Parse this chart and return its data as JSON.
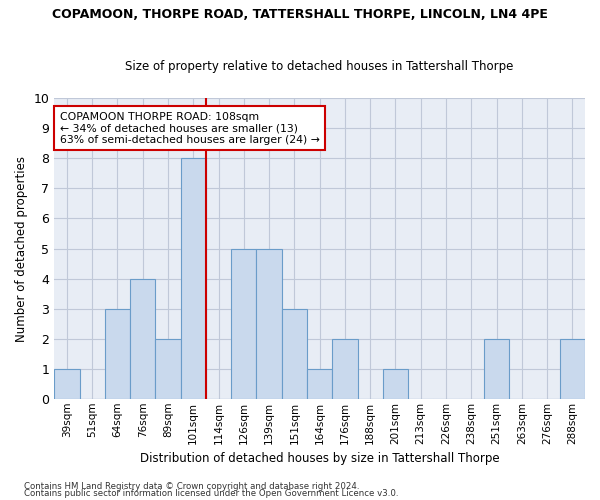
{
  "title": "COPAMOON, THORPE ROAD, TATTERSHALL THORPE, LINCOLN, LN4 4PE",
  "subtitle": "Size of property relative to detached houses in Tattershall Thorpe",
  "xlabel": "Distribution of detached houses by size in Tattershall Thorpe",
  "ylabel": "Number of detached properties",
  "categories": [
    "39sqm",
    "51sqm",
    "64sqm",
    "76sqm",
    "89sqm",
    "101sqm",
    "114sqm",
    "126sqm",
    "139sqm",
    "151sqm",
    "164sqm",
    "176sqm",
    "188sqm",
    "201sqm",
    "213sqm",
    "226sqm",
    "238sqm",
    "251sqm",
    "263sqm",
    "276sqm",
    "288sqm"
  ],
  "values": [
    1,
    0,
    3,
    4,
    2,
    8,
    0,
    5,
    5,
    3,
    1,
    2,
    0,
    1,
    0,
    0,
    0,
    2,
    0,
    0,
    2
  ],
  "bar_color": "#c9d9ed",
  "bar_edge_color": "#6a9cc9",
  "highlight_index": 5,
  "highlight_line_color": "#cc0000",
  "ylim": [
    0,
    10
  ],
  "yticks": [
    0,
    1,
    2,
    3,
    4,
    5,
    6,
    7,
    8,
    9,
    10
  ],
  "annotation_text": "COPAMOON THORPE ROAD: 108sqm\n← 34% of detached houses are smaller (13)\n63% of semi-detached houses are larger (24) →",
  "annotation_box_color": "#cc0000",
  "footer1": "Contains HM Land Registry data © Crown copyright and database right 2024.",
  "footer2": "Contains public sector information licensed under the Open Government Licence v3.0.",
  "grid_color": "#c0c8d8",
  "background_color": "#e8edf5"
}
